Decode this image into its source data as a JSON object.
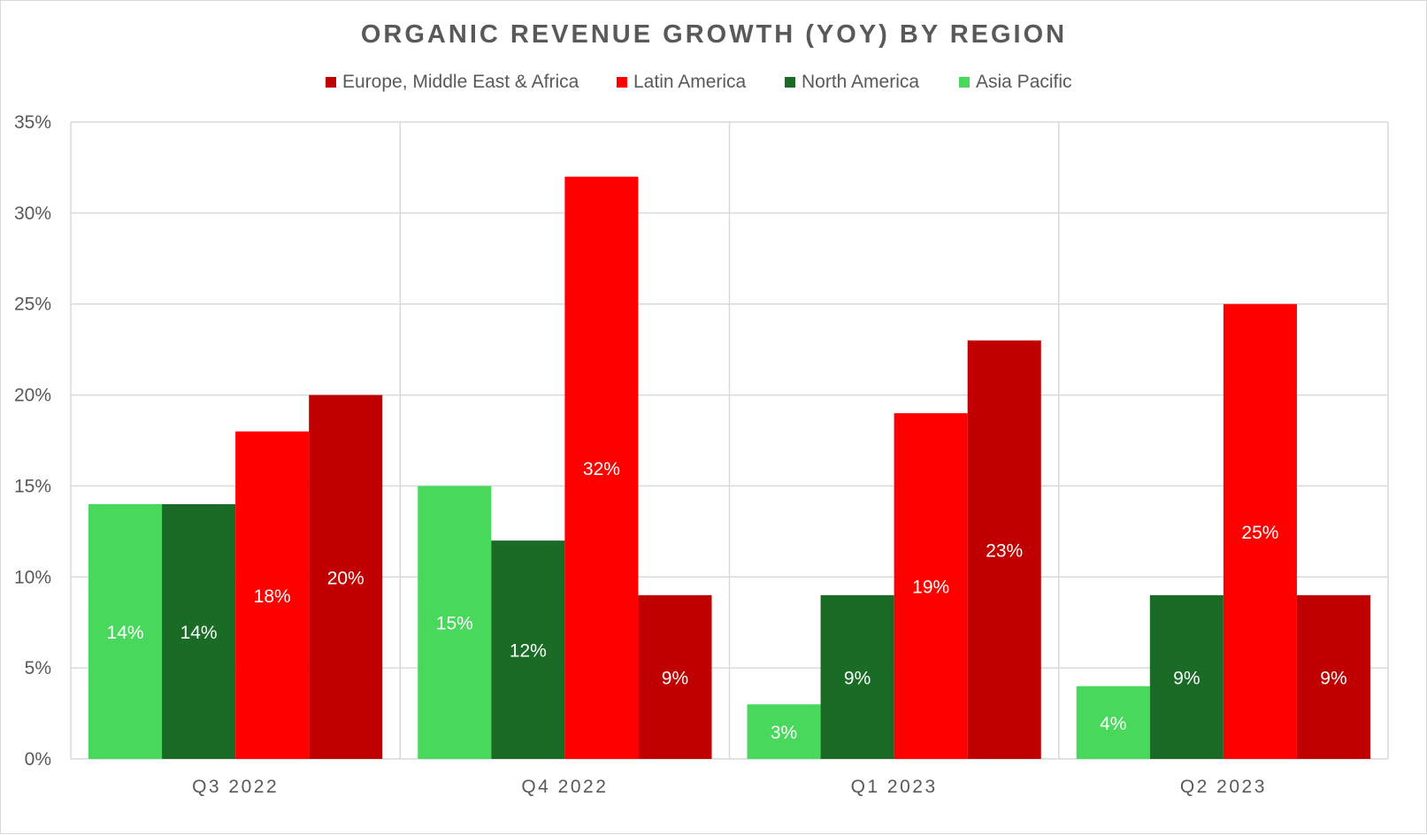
{
  "chart_data": {
    "type": "bar",
    "title": "ORGANIC REVENUE GROWTH (YOY) BY REGION",
    "categories": [
      "Q3 2022",
      "Q4 2022",
      "Q1 2023",
      "Q2 2023"
    ],
    "series": [
      {
        "name": "Asia Pacific",
        "color": "#47d85c",
        "values": [
          14,
          15,
          3,
          4
        ],
        "labels": [
          "14%",
          "15%",
          "3%",
          "4%"
        ]
      },
      {
        "name": "North America",
        "color": "#1a6b26",
        "values": [
          14,
          12,
          9,
          9
        ],
        "labels": [
          "14%",
          "12%",
          "9%",
          "9%"
        ]
      },
      {
        "name": "Latin America",
        "color": "#ff0000",
        "values": [
          18,
          32,
          19,
          25
        ],
        "labels": [
          "18%",
          "32%",
          "19%",
          "25%"
        ]
      },
      {
        "name": "Europe, Middle East & Africa",
        "color": "#c00000",
        "values": [
          20,
          9,
          23,
          9
        ],
        "labels": [
          "20%",
          "9%",
          "23%",
          "9%"
        ]
      }
    ],
    "legend": {
      "position": "top",
      "order": [
        "Europe, Middle East & Africa",
        "Latin America",
        "North America",
        "Asia Pacific"
      ]
    },
    "yaxis": {
      "ylim": [
        0,
        35
      ],
      "ticks": [
        0,
        5,
        10,
        15,
        20,
        25,
        30,
        35
      ],
      "tick_labels": [
        "0%",
        "5%",
        "10%",
        "15%",
        "20%",
        "25%",
        "30%",
        "35%"
      ]
    },
    "xlabel": "",
    "ylabel": "",
    "grid": true
  }
}
